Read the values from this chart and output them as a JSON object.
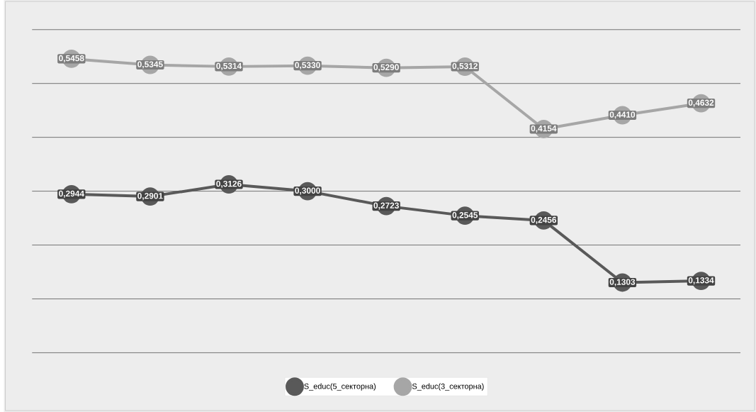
{
  "chart_data": {
    "type": "line",
    "categories": [
      null,
      null,
      null,
      null,
      null,
      null,
      null,
      null,
      null
    ],
    "ylim": [
      0,
      0.6
    ],
    "yticks": [
      0,
      0.1,
      0.2,
      0.3,
      0.4,
      0.5,
      0.6
    ],
    "tick_labels": false,
    "grid": "y",
    "legend": "bottom",
    "marker": "circle",
    "line_style": "solid",
    "series": [
      {
        "name": "S_educ(5_секторна)",
        "color": "#595959",
        "values": [
          0.2944,
          0.2901,
          0.3126,
          0.3,
          0.2723,
          0.2545,
          0.2456,
          0.1303,
          0.1334
        ],
        "value_labels": [
          "0,2944",
          "0,2901",
          "0,3126",
          "0,3000",
          "0,2723",
          "0,2545",
          "0,2456",
          "0,1303",
          "0,1334"
        ]
      },
      {
        "name": "S_educ(3_секторна)",
        "color": "#a6a6a6",
        "values": [
          0.5458,
          0.5345,
          0.5314,
          0.533,
          0.529,
          0.5312,
          0.4154,
          0.441,
          0.4632
        ],
        "value_labels": [
          "0,5458",
          "0,5345",
          "0,5314",
          "0,5330",
          "0,5290",
          "0,5312",
          "0,4154",
          "0,4410",
          "0,4632"
        ]
      }
    ]
  }
}
